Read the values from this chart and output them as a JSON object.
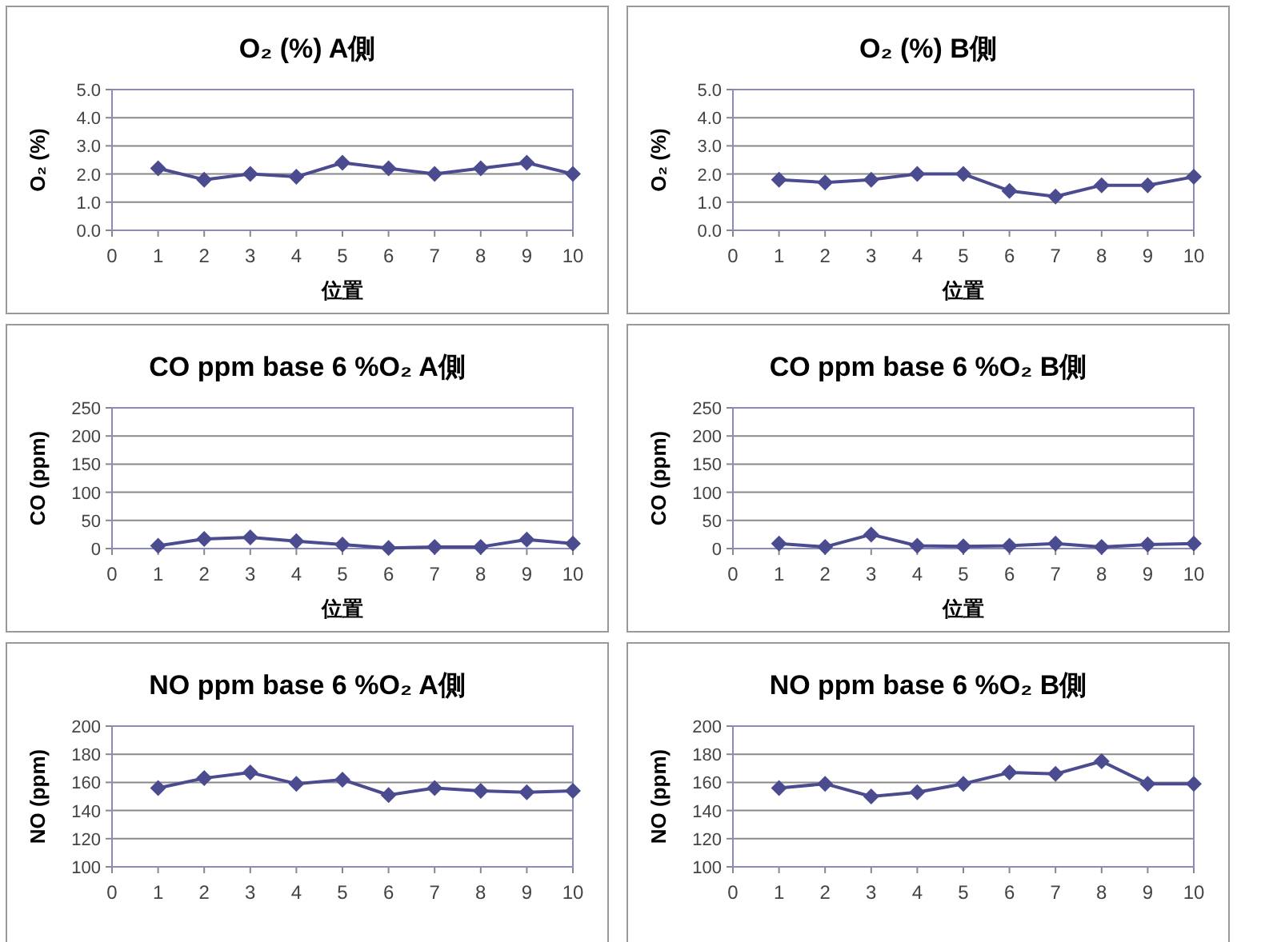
{
  "chart_data": [
    {
      "type": "line",
      "title": "O₂ (%) A側",
      "xlabel": "位置",
      "ylabel": "O₂ (%)",
      "x": [
        1,
        2,
        3,
        4,
        5,
        6,
        7,
        8,
        9,
        10
      ],
      "series": [
        {
          "color": "#4b4b8f",
          "values": [
            2.2,
            1.8,
            2.0,
            1.9,
            2.4,
            2.2,
            2.0,
            2.2,
            2.4,
            2.0
          ]
        }
      ],
      "xlim": [
        0,
        10
      ],
      "xticks": [
        0,
        1,
        2,
        3,
        4,
        5,
        6,
        7,
        8,
        9,
        10
      ],
      "ylim": [
        0,
        5
      ],
      "yticks": [
        {
          "value": 0,
          "label": "0.0"
        },
        {
          "value": 1,
          "label": "1.0"
        },
        {
          "value": 2,
          "label": "2.0"
        },
        {
          "value": 3,
          "label": "3.0"
        },
        {
          "value": 4,
          "label": "4.0"
        },
        {
          "value": 5,
          "label": "5.0"
        }
      ],
      "grid": "y",
      "marker": "diamond",
      "line_style": "solid"
    },
    {
      "type": "line",
      "title": "O₂ (%) B側",
      "xlabel": "位置",
      "ylabel": "O₂ (%)",
      "x": [
        1,
        2,
        3,
        4,
        5,
        6,
        7,
        8,
        9,
        10
      ],
      "series": [
        {
          "color": "#4b4b8f",
          "values": [
            1.8,
            1.7,
            1.8,
            2.0,
            2.0,
            1.4,
            1.2,
            1.6,
            1.6,
            1.9
          ]
        }
      ],
      "xlim": [
        0,
        10
      ],
      "xticks": [
        0,
        1,
        2,
        3,
        4,
        5,
        6,
        7,
        8,
        9,
        10
      ],
      "ylim": [
        0,
        5
      ],
      "yticks": [
        {
          "value": 0,
          "label": "0.0"
        },
        {
          "value": 1,
          "label": "1.0"
        },
        {
          "value": 2,
          "label": "2.0"
        },
        {
          "value": 3,
          "label": "3.0"
        },
        {
          "value": 4,
          "label": "4.0"
        },
        {
          "value": 5,
          "label": "5.0"
        }
      ],
      "grid": "y",
      "marker": "diamond",
      "line_style": "solid"
    },
    {
      "type": "line",
      "title": "CO ppm base 6 %O₂ A側",
      "xlabel": "位置",
      "ylabel": "CO (ppm)",
      "x": [
        1,
        2,
        3,
        4,
        5,
        6,
        7,
        8,
        9,
        10
      ],
      "series": [
        {
          "color": "#4b4b8f",
          "values": [
            5,
            17,
            20,
            13,
            7,
            1,
            3,
            3,
            16,
            9
          ]
        }
      ],
      "xlim": [
        0,
        10
      ],
      "xticks": [
        0,
        1,
        2,
        3,
        4,
        5,
        6,
        7,
        8,
        9,
        10
      ],
      "ylim": [
        0,
        250
      ],
      "yticks": [
        0,
        50,
        100,
        150,
        200,
        250
      ],
      "grid": "y",
      "marker": "diamond",
      "line_style": "solid"
    },
    {
      "type": "line",
      "title": "CO ppm base 6 %O₂ B側",
      "xlabel": "位置",
      "ylabel": "CO (ppm)",
      "x": [
        1,
        2,
        3,
        4,
        5,
        6,
        7,
        8,
        9,
        10
      ],
      "series": [
        {
          "color": "#4b4b8f",
          "values": [
            9,
            3,
            25,
            5,
            4,
            5,
            9,
            3,
            7,
            9
          ]
        }
      ],
      "xlim": [
        0,
        10
      ],
      "xticks": [
        0,
        1,
        2,
        3,
        4,
        5,
        6,
        7,
        8,
        9,
        10
      ],
      "ylim": [
        0,
        250
      ],
      "yticks": [
        0,
        50,
        100,
        150,
        200,
        250
      ],
      "grid": "y",
      "marker": "diamond",
      "line_style": "solid"
    },
    {
      "type": "line",
      "title": "NO ppm base 6 %O₂ A側",
      "ylabel": "NO (ppm)",
      "x": [
        1,
        2,
        3,
        4,
        5,
        6,
        7,
        8,
        9,
        10
      ],
      "series": [
        {
          "color": "#4b4b8f",
          "values": [
            156,
            163,
            167,
            159,
            162,
            151,
            156,
            154,
            153,
            154
          ]
        }
      ],
      "xlim": [
        0,
        10
      ],
      "xticks": [
        0,
        1,
        2,
        3,
        4,
        5,
        6,
        7,
        8,
        9,
        10
      ],
      "ylim": [
        100,
        200
      ],
      "yticks": [
        100,
        120,
        140,
        160,
        180,
        200
      ],
      "grid": "y",
      "marker": "diamond",
      "line_style": "solid"
    },
    {
      "type": "line",
      "title": "NO ppm base 6 %O₂ B側",
      "ylabel": "NO (ppm)",
      "x": [
        1,
        2,
        3,
        4,
        5,
        6,
        7,
        8,
        9,
        10
      ],
      "series": [
        {
          "color": "#4b4b8f",
          "values": [
            156,
            159,
            150,
            153,
            159,
            167,
            166,
            175,
            159,
            159
          ]
        }
      ],
      "xlim": [
        0,
        10
      ],
      "xticks": [
        0,
        1,
        2,
        3,
        4,
        5,
        6,
        7,
        8,
        9,
        10
      ],
      "ylim": [
        100,
        200
      ],
      "yticks": [
        100,
        120,
        140,
        160,
        180,
        200
      ],
      "grid": "y",
      "marker": "diamond",
      "line_style": "solid"
    }
  ]
}
